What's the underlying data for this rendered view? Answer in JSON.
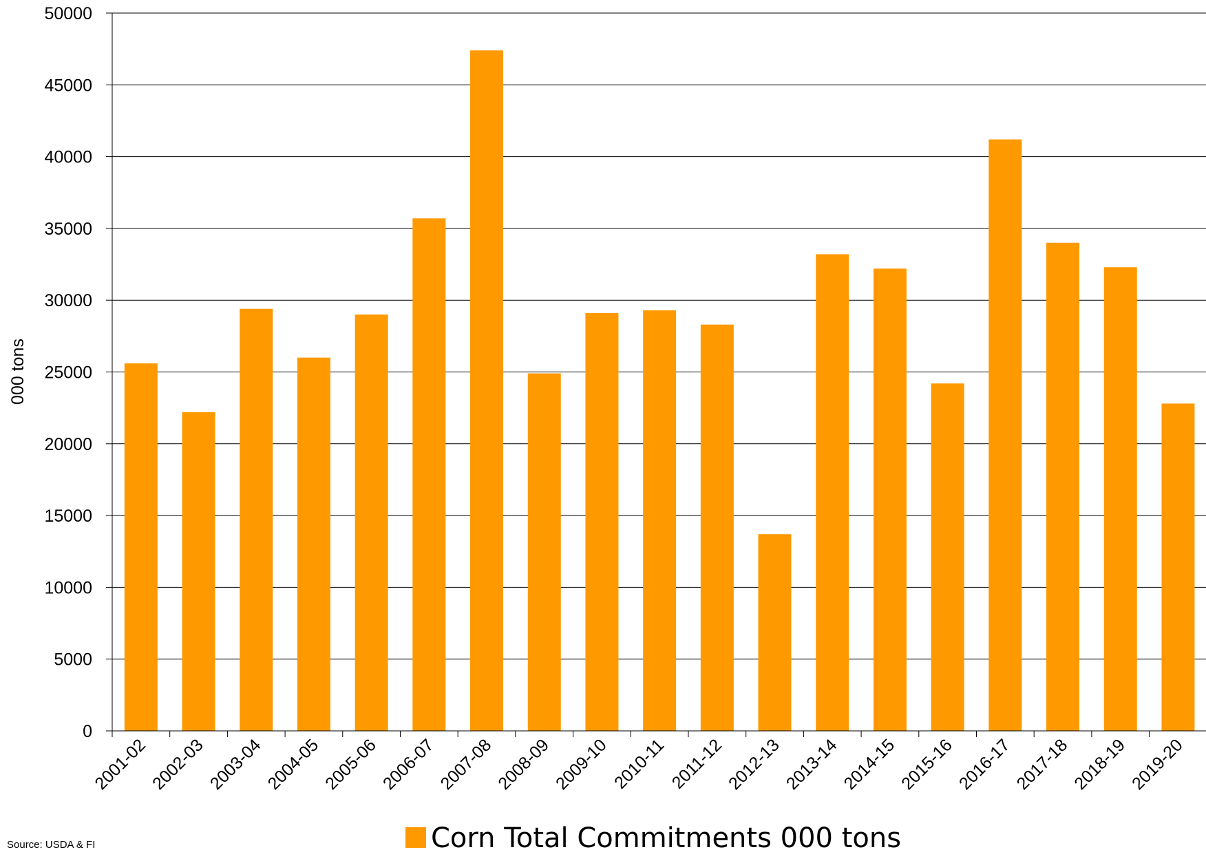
{
  "chart_data": {
    "type": "bar",
    "title": "",
    "xlabel": "",
    "ylabel": "000 tons",
    "ylim": [
      0,
      50000
    ],
    "yticks": [
      0,
      5000,
      10000,
      15000,
      20000,
      25000,
      30000,
      35000,
      40000,
      45000,
      50000
    ],
    "grid": true,
    "legend_position": "bottom",
    "categories": [
      "2001-02",
      "2002-03",
      "2003-04",
      "2004-05",
      "2005-06",
      "2006-07",
      "2007-08",
      "2008-09",
      "2009-10",
      "2010-11",
      "2011-12",
      "2012-13",
      "2013-14",
      "2014-15",
      "2015-16",
      "2016-17",
      "2017-18",
      "2018-19",
      "2019-20"
    ],
    "series": [
      {
        "name": "Corn Total Commitments 000 tons",
        "color": "#ff9900",
        "values": [
          25600,
          22200,
          29400,
          26000,
          29000,
          35700,
          47400,
          24900,
          29100,
          29300,
          28300,
          13700,
          33200,
          32200,
          24200,
          41200,
          34000,
          32300,
          22800
        ]
      }
    ],
    "source_note": "Source: USDA & FI"
  }
}
